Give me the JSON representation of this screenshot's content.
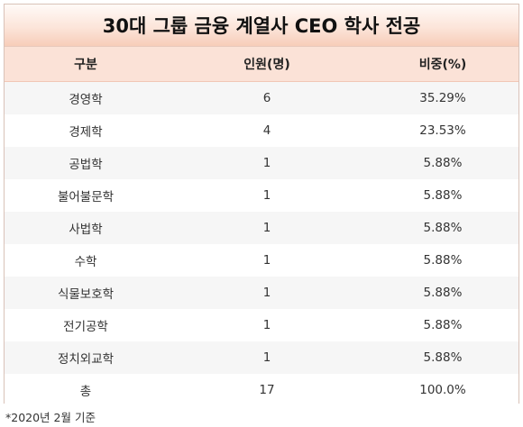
{
  "title": "30대 그룹 금융 계열사 CEO 학사 전공",
  "headers": [
    "구분",
    "인원(명)",
    "비중(%)"
  ],
  "rows": [
    [
      "경영학",
      "6",
      "35.29%"
    ],
    [
      "경제학",
      "4",
      "23.53%"
    ],
    [
      "공법학",
      "1",
      "5.88%"
    ],
    [
      "불어불문학",
      "1",
      "5.88%"
    ],
    [
      "사법학",
      "1",
      "5.88%"
    ],
    [
      "수학",
      "1",
      "5.88%"
    ],
    [
      "식물보호학",
      "1",
      "5.88%"
    ],
    [
      "전기공학",
      "1",
      "5.88%"
    ],
    [
      "정치외교학",
      "1",
      "5.88%"
    ],
    [
      "총",
      "17",
      "100.0%"
    ]
  ],
  "footnote": "*2020년 2월 기준",
  "colors": {
    "title_gradient_bottom": "#f7cdb9",
    "header_bg": "#fbe2d7",
    "row_alt_bg": "#f6f6f6"
  }
}
